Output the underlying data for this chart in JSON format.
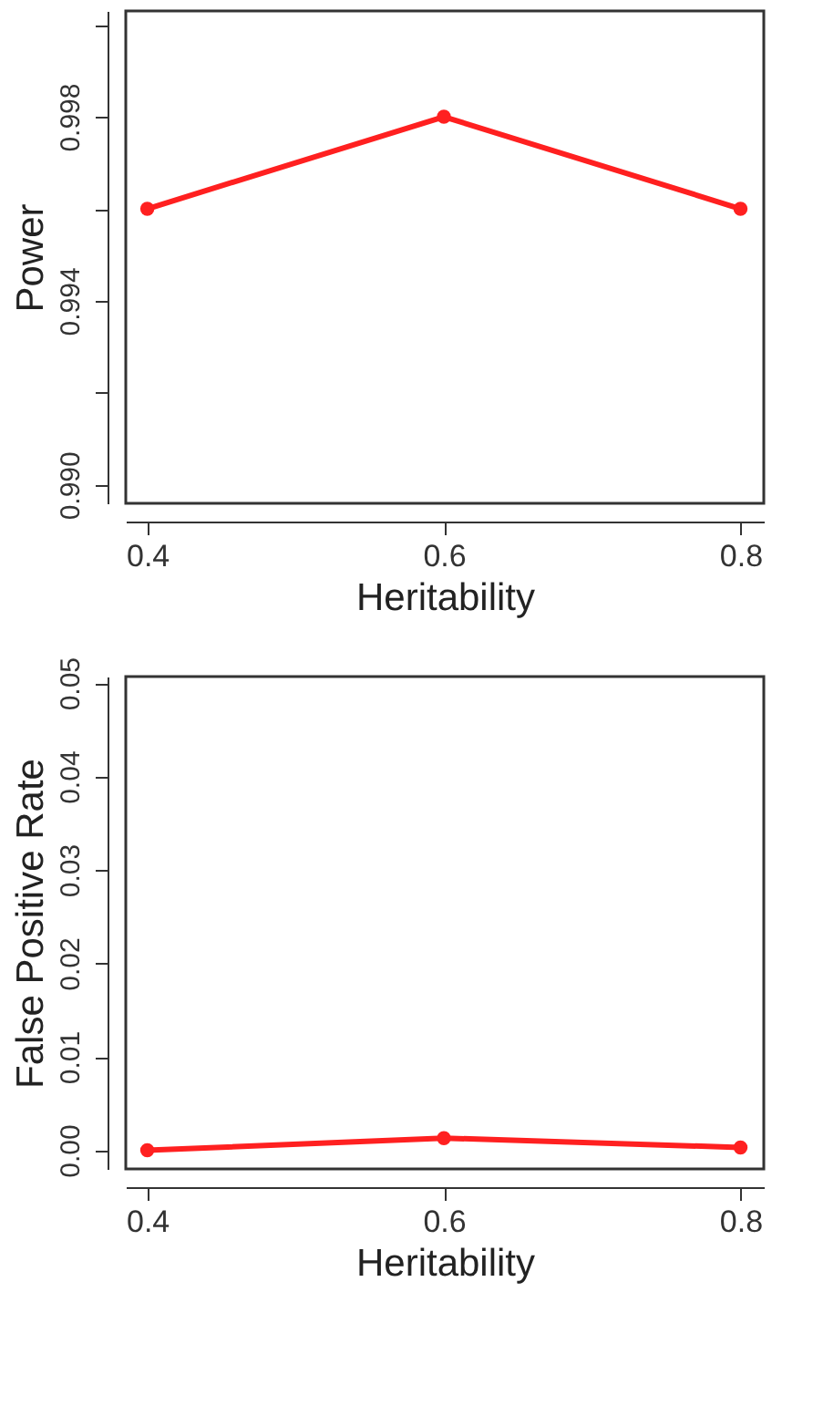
{
  "chart_data": [
    {
      "type": "line",
      "xlabel": "Heritability",
      "ylabel": "Power",
      "x": [
        0.4,
        0.6,
        0.8
      ],
      "series": [
        {
          "color": "#ff2020",
          "values": [
            0.996,
            0.998,
            0.996
          ]
        }
      ],
      "xlim": [
        0.3855,
        0.8157
      ],
      "xticks": [
        0.4,
        0.6,
        0.8
      ],
      "ylim": [
        0.9896,
        1.0003
      ],
      "yticks": [
        {
          "value": 0.99,
          "label": "0.990"
        },
        {
          "value": 0.992,
          "label": null
        },
        {
          "value": 0.994,
          "label": "0.994"
        },
        {
          "value": 0.996,
          "label": null
        },
        {
          "value": 0.998,
          "label": "0.998"
        },
        {
          "value": 1.0,
          "label": null
        }
      ],
      "grid": false,
      "marker": "circle",
      "line_style": "solid"
    },
    {
      "type": "line",
      "xlabel": "Heritability",
      "ylabel": "False Positive Rate",
      "x": [
        0.4,
        0.6,
        0.8
      ],
      "series": [
        {
          "color": "#ff2020",
          "values": [
            0.0,
            0.0013,
            0.0003
          ]
        }
      ],
      "xlim": [
        0.3855,
        0.8157
      ],
      "xticks": [
        0.4,
        0.6,
        0.8
      ],
      "ylim": [
        -0.002,
        0.0507
      ],
      "yticks": [
        {
          "value": 0,
          "label": "0.00"
        },
        {
          "value": 0.01,
          "label": "0.01"
        },
        {
          "value": 0.02,
          "label": "0.02"
        },
        {
          "value": 0.03,
          "label": "0.03"
        },
        {
          "value": 0.04,
          "label": "0.04"
        },
        {
          "value": 0.05,
          "label": "0.05"
        }
      ],
      "grid": false,
      "marker": "circle",
      "line_style": "solid"
    }
  ]
}
